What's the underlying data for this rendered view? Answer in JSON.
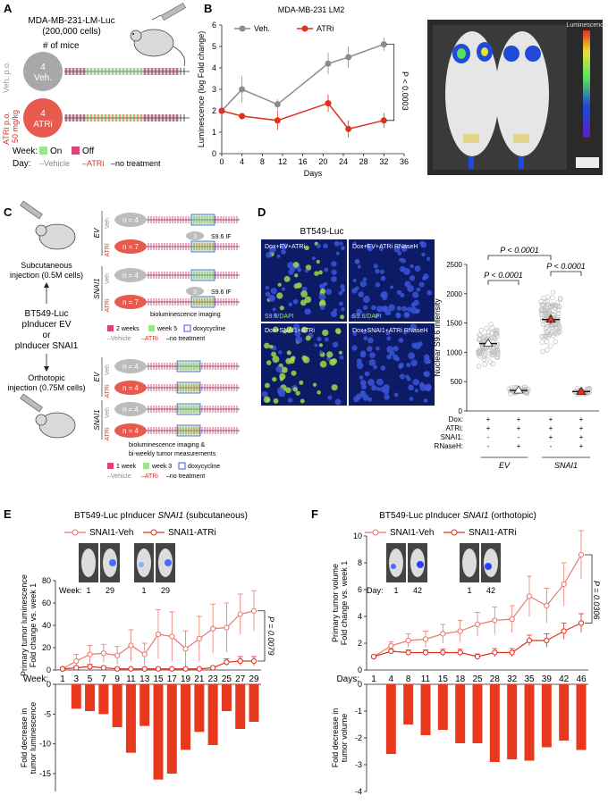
{
  "panels": {
    "a": {
      "letter": "A",
      "cells_line1": "MDA-MB-231-LM-Luc",
      "cells_line2": "(200,000 cells)",
      "mice_label": "# of mice",
      "veh_route": "Veh. p.o.",
      "atri_route1": "ATRi p.o.",
      "atri_route2": "50 mg/kg",
      "veh_group": {
        "n": "4",
        "label": "Veh."
      },
      "atri_group": {
        "n": "4",
        "label": "ATRi"
      },
      "legend": {
        "week": "Week:",
        "on": "On",
        "off": "Off",
        "day": "Day:",
        "vehicle": "–Vehicle",
        "atri": "–ATRi",
        "none": "–no treatment"
      }
    },
    "b": {
      "letter": "B",
      "title": "MDA-MB-231 LM2",
      "pvalue": "P < 0.0003",
      "legend_veh": "Veh.",
      "legend_atri": "ATRi",
      "image_scale_label": "Luminescence"
    },
    "c": {
      "letter": "C",
      "sc_injection": "Subcutaneous",
      "sc_injection2": "injection (0.5M cells)",
      "cells1": "BT549-Luc",
      "cells2": "pInducer EV",
      "cells3": "or",
      "cells4": "pInducer SNAI1",
      "ortho_injection": "Orthotopic",
      "ortho_injection2": "injection (0.75M cells)",
      "ev": "EV",
      "snai1": "SNAI1",
      "veh": "Veh",
      "atri": "ATRi",
      "sc_groups": [
        "n = 4",
        "n = 7",
        "n = 4",
        "n = 7"
      ],
      "ortho_groups": [
        "n = 4",
        "n = 4",
        "n = 4",
        "n = 4"
      ],
      "s96_count": "3",
      "s96_label": "S9.6 IF",
      "biolum": "bioluminescence imaging",
      "biolum2": "bioluminescence imaging &",
      "biolum3": "bi-weekly tumor measurements",
      "legend_sc": {
        "a": "2 weeks",
        "b": "week 5",
        "c": "doxycycline"
      },
      "legend_or": {
        "a": "1 week",
        "b": "week 3",
        "c": "doxycycline"
      },
      "legend_treat": {
        "vehicle": "–Vehicle",
        "atri": "–ATRi",
        "none": "–no treatment"
      }
    },
    "d": {
      "letter": "D",
      "title": "BT549-Luc",
      "img_labels": [
        "Dox+EV+ATRi",
        "Dox+EV+ATRi RNaseH",
        "Dox+SNAI1+ATRi",
        "Dox+SNAI1+ATRi RNaseH"
      ],
      "stain": "S9.6/DAPI",
      "p1": "P < 0.0001",
      "p2": "P < 0.0001",
      "p3": "P < 0.0001",
      "row_labels": [
        "Dox:",
        "ATRi:",
        "SNAI1:",
        "RNaseH:"
      ],
      "rows": [
        [
          "+",
          "+",
          "+",
          "+"
        ],
        [
          "+",
          "+",
          "+",
          "+"
        ],
        [
          "-",
          "-",
          "+",
          "+"
        ],
        [
          "-",
          "+",
          "-",
          "+"
        ]
      ],
      "group_ev": "EV",
      "group_snai1": "SNAI1"
    },
    "e": {
      "letter": "E",
      "title_pre": "BT549-Luc pInducer ",
      "title_gene": "SNAI1",
      "title_post": " (subcutaneous)",
      "legend_veh": "SNAI1-Veh",
      "legend_atri": "SNAI1-ATRi",
      "pvalue": "P = 0.0079",
      "image_week_label": "Week:",
      "image_ticks": [
        "1",
        "29",
        "1",
        "29"
      ],
      "x_prefix": "Week:"
    },
    "f": {
      "letter": "F",
      "title_pre": "BT549-Luc pInducer ",
      "title_gene": "SNAI1",
      "title_post": " (orthotopic)",
      "legend_veh": "SNAI1-Veh",
      "legend_atri": "SNAI1-ATRi",
      "pvalue": "P = 0.0306",
      "image_day_label": "Day:",
      "image_ticks": [
        "1",
        "42",
        "1",
        "42"
      ],
      "x_prefix": "Days:"
    }
  },
  "colors": {
    "veh": "#8c8c8c",
    "atri": "#e0301e",
    "salmon": "#e8796e",
    "bar": "#e8391f",
    "pink": "#d9457a",
    "green": "#7fd36b"
  },
  "chart_data": [
    {
      "id": "B",
      "type": "line",
      "title": "MDA-MB-231 LM2",
      "xlabel": "Days",
      "ylabel": "Luminescence (log Fold change)",
      "xlim": [
        0,
        36
      ],
      "ylim": [
        0,
        6
      ],
      "xticks": [
        0,
        4,
        8,
        12,
        16,
        20,
        24,
        28,
        32,
        36
      ],
      "yticks": [
        0,
        1,
        2,
        3,
        4,
        5,
        6
      ],
      "x": [
        0,
        4,
        11,
        21,
        25,
        32
      ],
      "series": [
        {
          "name": "Veh.",
          "values": [
            2.0,
            3.0,
            2.3,
            4.2,
            4.5,
            5.1
          ],
          "err": [
            0.05,
            0.6,
            0.25,
            0.5,
            0.5,
            0.3
          ]
        },
        {
          "name": "ATRi",
          "values": [
            2.0,
            1.75,
            1.55,
            2.35,
            1.15,
            1.55
          ],
          "err": [
            0.05,
            0.15,
            0.45,
            0.4,
            0.4,
            0.35
          ]
        }
      ],
      "annotation": "P < 0.0003"
    },
    {
      "id": "D",
      "type": "scatter",
      "ylabel": "Nuclear S9.6  intensity",
      "ylim": [
        0,
        2500
      ],
      "yticks": [
        0,
        500,
        1000,
        1500,
        2000,
        2500
      ],
      "categories": [
        "EV ATRi",
        "EV ATRi RNaseH",
        "SNAI1 ATRi",
        "SNAI1 ATRi RNaseH"
      ],
      "means": [
        1150,
        350,
        1560,
        330
      ],
      "sem": [
        40,
        20,
        80,
        20
      ]
    },
    {
      "id": "E",
      "type": "line",
      "title": "BT549-Luc pInducer SNAI1 (subcutaneous)",
      "ylabel": "Primary tumor luminescence Fold change vs. week 1",
      "ylim": [
        0,
        80
      ],
      "yticks": [
        0,
        20,
        40,
        60,
        80
      ],
      "categories": [
        "1",
        "3",
        "5",
        "7",
        "9",
        "11",
        "13",
        "15",
        "17",
        "19",
        "21",
        "23",
        "25",
        "27",
        "29"
      ],
      "series": [
        {
          "name": "SNAI1-Veh",
          "values": [
            1,
            8,
            14,
            15,
            13,
            22,
            14,
            32,
            30,
            19,
            28,
            37,
            38,
            50,
            53
          ],
          "err": [
            0.5,
            6,
            8,
            8,
            8,
            14,
            10,
            22,
            22,
            16,
            20,
            22,
            22,
            18,
            18
          ]
        },
        {
          "name": "SNAI1-ATRi",
          "values": [
            1,
            2,
            3,
            2,
            1,
            1,
            1,
            1,
            1,
            1,
            1,
            2,
            7,
            8,
            8
          ],
          "err": [
            0.3,
            1,
            2,
            1,
            0.5,
            0.5,
            0.5,
            0.5,
            0.5,
            0.5,
            0.5,
            1,
            3,
            4,
            4
          ]
        }
      ],
      "lower": {
        "ylabel": "Fold decrease in tumor luminescence",
        "values": [
          -4.1,
          -4.5,
          -5.0,
          -7.2,
          -11.5,
          -7.0,
          -16.0,
          -15.0,
          -11.0,
          -8.0,
          -10.2,
          -4.5,
          -7.5,
          -6.3
        ]
      }
    },
    {
      "id": "F",
      "type": "line",
      "title": "BT549-Luc pInducer SNAI1 (orthotopic)",
      "ylabel": "Primary tumor volume Fold change vs. week 1",
      "ylim": [
        0,
        10
      ],
      "yticks": [
        0,
        2,
        4,
        6,
        8,
        10
      ],
      "categories": [
        "1",
        "4",
        "8",
        "11",
        "15",
        "18",
        "25",
        "28",
        "32",
        "35",
        "39",
        "42",
        "46"
      ],
      "series": [
        {
          "name": "SNAI1-Veh",
          "values": [
            1.0,
            1.8,
            2.2,
            2.3,
            2.7,
            2.9,
            3.4,
            3.7,
            3.8,
            5.5,
            4.8,
            6.4,
            8.6
          ],
          "err": [
            0.05,
            0.3,
            0.5,
            0.6,
            0.7,
            0.8,
            0.9,
            1.0,
            1.0,
            1.5,
            1.3,
            1.6,
            1.8
          ]
        },
        {
          "name": "SNAI1-ATRi",
          "values": [
            1.0,
            1.4,
            1.3,
            1.3,
            1.3,
            1.3,
            1.0,
            1.3,
            1.3,
            2.2,
            2.2,
            2.9,
            3.5
          ],
          "err": [
            0.05,
            0.15,
            0.2,
            0.2,
            0.25,
            0.25,
            0.2,
            0.3,
            0.3,
            0.4,
            0.5,
            0.6,
            0.7
          ]
        }
      ],
      "lower": {
        "ylabel": "Fold decrease in tumor volume",
        "values": [
          -2.6,
          -1.5,
          -1.9,
          -1.7,
          -2.2,
          -2.2,
          -2.9,
          -2.8,
          -2.85,
          -2.35,
          -2.1,
          -2.45
        ]
      }
    }
  ]
}
